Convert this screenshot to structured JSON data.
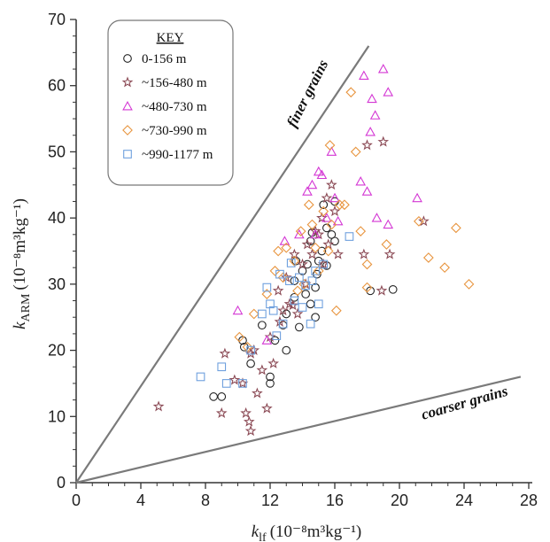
{
  "chart_data": {
    "type": "scatter",
    "xlabel_main": "k",
    "xlabel_sub": "lf",
    "xlabel_units": "(10⁻⁸m³kg⁻¹)",
    "ylabel_main": "k",
    "ylabel_sub": "ARM",
    "ylabel_units": "(10⁻⁸m³kg⁻¹)",
    "xlim": [
      0,
      28
    ],
    "ylim": [
      0,
      70
    ],
    "xticks": [
      "0",
      "4",
      "8",
      "12",
      "16",
      "20",
      "24",
      "28"
    ],
    "yticks": [
      "0",
      "10",
      "20",
      "30",
      "40",
      "50",
      "60",
      "70"
    ],
    "grid": false,
    "legend_position": "top-left",
    "legend_title": "KEY",
    "annotations": [
      {
        "text": "finer grains",
        "line_from": [
          0,
          0
        ],
        "line_to": [
          18.1,
          66
        ]
      },
      {
        "text": "coarser grains",
        "line_from": [
          0,
          0
        ],
        "line_to": [
          27.5,
          16
        ]
      }
    ],
    "series": [
      {
        "name": "0-156 m",
        "marker": "circle",
        "color": "#222222",
        "points": [
          [
            8.5,
            13
          ],
          [
            9.0,
            13
          ],
          [
            10.3,
            21.5
          ],
          [
            10.4,
            20.5
          ],
          [
            10.8,
            18
          ],
          [
            11.5,
            23.8
          ],
          [
            12.0,
            16
          ],
          [
            12.0,
            15
          ],
          [
            12.3,
            21.5
          ],
          [
            12.8,
            23.8
          ],
          [
            13.0,
            25.5
          ],
          [
            13.0,
            20
          ],
          [
            13.5,
            28
          ],
          [
            13.5,
            30.5
          ],
          [
            13.8,
            23.5
          ],
          [
            14.0,
            32
          ],
          [
            14.2,
            28.5
          ],
          [
            14.3,
            33
          ],
          [
            14.5,
            27
          ],
          [
            14.5,
            36.5
          ],
          [
            14.6,
            37.8
          ],
          [
            14.8,
            25
          ],
          [
            14.8,
            29.5
          ],
          [
            15.0,
            33.5
          ],
          [
            15.2,
            35
          ],
          [
            15.3,
            42
          ],
          [
            15.5,
            38.5
          ],
          [
            15.5,
            32.8
          ],
          [
            15.8,
            37.5
          ],
          [
            16.0,
            42.5
          ],
          [
            16.0,
            36.5
          ],
          [
            18.2,
            29
          ],
          [
            19.6,
            29.2
          ],
          [
            13.6,
            33.5
          ],
          [
            14.9,
            31.5
          ]
        ]
      },
      {
        "name": "~156-480 m",
        "marker": "star",
        "color": "#8b4a55",
        "points": [
          [
            5.1,
            11.5
          ],
          [
            9.0,
            10.5
          ],
          [
            9.2,
            19.5
          ],
          [
            9.8,
            15.5
          ],
          [
            10.3,
            15
          ],
          [
            10.5,
            10.5
          ],
          [
            10.7,
            9.2
          ],
          [
            10.8,
            7.8
          ],
          [
            10.8,
            19.5
          ],
          [
            11.0,
            20
          ],
          [
            11.2,
            13.5
          ],
          [
            11.5,
            17
          ],
          [
            11.8,
            11.2
          ],
          [
            12.0,
            22
          ],
          [
            12.2,
            18
          ],
          [
            12.5,
            29
          ],
          [
            12.8,
            26
          ],
          [
            13.0,
            31
          ],
          [
            13.2,
            27
          ],
          [
            13.5,
            34.5
          ],
          [
            13.7,
            25.5
          ],
          [
            14.0,
            33
          ],
          [
            14.2,
            30
          ],
          [
            14.3,
            36
          ],
          [
            14.6,
            34.5
          ],
          [
            14.8,
            38
          ],
          [
            15.0,
            37.5
          ],
          [
            15.2,
            40
          ],
          [
            15.3,
            33
          ],
          [
            15.5,
            43
          ],
          [
            15.6,
            36
          ],
          [
            15.8,
            45
          ],
          [
            16.0,
            41
          ],
          [
            16.2,
            34.5
          ],
          [
            17.8,
            34.5
          ],
          [
            18.0,
            51
          ],
          [
            18.9,
            29
          ],
          [
            19.0,
            51.5
          ],
          [
            19.4,
            34.5
          ],
          [
            21.5,
            39.5
          ],
          [
            12.6,
            24.3
          ],
          [
            13.4,
            26.8
          ]
        ]
      },
      {
        "name": "~480-730 m",
        "marker": "triangle",
        "color": "#d437d4",
        "points": [
          [
            10.0,
            26
          ],
          [
            11.8,
            21.5
          ],
          [
            12.9,
            36.5
          ],
          [
            13.8,
            37.5
          ],
          [
            14.3,
            44
          ],
          [
            14.8,
            37.5
          ],
          [
            15.0,
            47
          ],
          [
            15.2,
            46.5
          ],
          [
            15.5,
            40
          ],
          [
            15.8,
            50
          ],
          [
            16.0,
            43
          ],
          [
            16.2,
            39.5
          ],
          [
            17.8,
            61.5
          ],
          [
            18.0,
            44
          ],
          [
            18.2,
            53
          ],
          [
            18.3,
            58
          ],
          [
            18.5,
            55.5
          ],
          [
            18.6,
            40
          ],
          [
            19.0,
            62.5
          ],
          [
            19.3,
            59
          ],
          [
            19.3,
            39
          ],
          [
            21.1,
            43
          ],
          [
            17.6,
            45.5
          ],
          [
            14.6,
            45
          ]
        ]
      },
      {
        "name": "~730-990 m",
        "marker": "diamond",
        "color": "#e8953f",
        "points": [
          [
            10.1,
            22
          ],
          [
            10.6,
            20.5
          ],
          [
            11.0,
            25.5
          ],
          [
            11.8,
            28.5
          ],
          [
            12.3,
            32
          ],
          [
            12.5,
            35
          ],
          [
            12.8,
            31
          ],
          [
            13.0,
            35.5
          ],
          [
            13.5,
            33.5
          ],
          [
            13.7,
            29
          ],
          [
            13.9,
            38
          ],
          [
            14.1,
            30
          ],
          [
            14.4,
            42
          ],
          [
            14.6,
            39
          ],
          [
            14.8,
            35.5
          ],
          [
            15.0,
            32
          ],
          [
            15.3,
            41
          ],
          [
            15.6,
            35
          ],
          [
            15.8,
            39
          ],
          [
            16.1,
            26
          ],
          [
            16.3,
            42
          ],
          [
            16.6,
            42
          ],
          [
            17.0,
            59
          ],
          [
            17.3,
            50
          ],
          [
            17.6,
            38
          ],
          [
            18.0,
            33
          ],
          [
            18.0,
            29.5
          ],
          [
            19.2,
            36
          ],
          [
            21.2,
            39.5
          ],
          [
            21.8,
            34
          ],
          [
            22.8,
            32.5
          ],
          [
            23.5,
            38.5
          ],
          [
            24.3,
            30
          ],
          [
            15.7,
            51
          ]
        ]
      },
      {
        "name": "~990-1177 m",
        "marker": "square",
        "color": "#6fa0de",
        "points": [
          [
            7.7,
            16
          ],
          [
            9.0,
            17.5
          ],
          [
            9.3,
            15
          ],
          [
            10.3,
            15
          ],
          [
            10.8,
            20
          ],
          [
            11.5,
            25.5
          ],
          [
            11.8,
            29.5
          ],
          [
            12.0,
            27
          ],
          [
            12.2,
            26
          ],
          [
            12.6,
            31.5
          ],
          [
            12.8,
            24
          ],
          [
            13.2,
            30.5
          ],
          [
            13.5,
            27.5
          ],
          [
            13.8,
            31
          ],
          [
            14.0,
            26.5
          ],
          [
            14.2,
            29.8
          ],
          [
            14.5,
            24
          ],
          [
            14.6,
            30.5
          ],
          [
            14.8,
            32
          ],
          [
            15.0,
            27
          ],
          [
            15.3,
            33
          ],
          [
            16.9,
            37.2
          ],
          [
            13.3,
            33.2
          ],
          [
            12.4,
            22.2
          ]
        ]
      }
    ]
  }
}
